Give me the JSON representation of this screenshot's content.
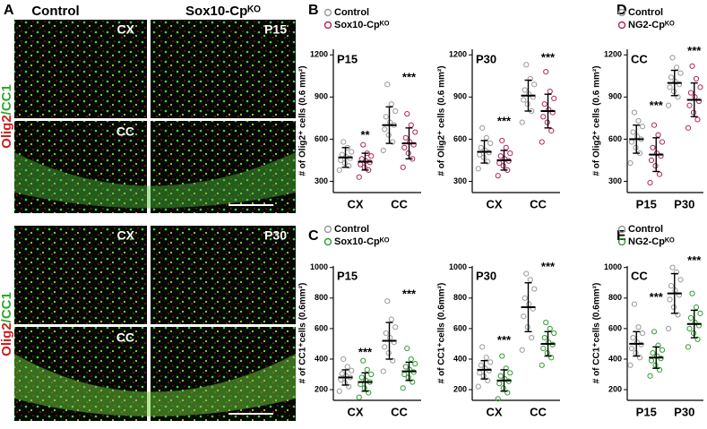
{
  "figure": {
    "letters": [
      "A",
      "B",
      "C",
      "D",
      "E"
    ],
    "imaging": {
      "col_headers": [
        "Control",
        "Sox10-Cpᴷᴼ"
      ],
      "stain_red": "Olig2",
      "stain_green": "/CC1",
      "tags_top": [
        "CX",
        "P15",
        "CC"
      ],
      "tags_bottom": [
        "CX",
        "P30",
        "CC"
      ]
    }
  },
  "chart_data": [
    {
      "type": "dotplot",
      "title": "P15",
      "ylabel": "# of Olig2⁺ cells (0.6 mm²)",
      "categories": [
        "CX",
        "CC"
      ],
      "ylim": [
        220,
        1240
      ],
      "yticks": [
        300,
        600,
        900,
        1200
      ],
      "legend": "top-left",
      "significance": [
        "**",
        "***"
      ],
      "series": [
        {
          "name": "Control",
          "color": "#999999",
          "values": [
            [
              380,
              410,
              430,
              450,
              465,
              475,
              490,
              510,
              540,
              580
            ],
            [
              520,
              580,
              630,
              670,
              700,
              720,
              760,
              800,
              850,
              990
            ]
          ],
          "means": [
            470,
            700
          ],
          "sd": [
            70,
            130
          ]
        },
        {
          "name": "Sox10-Cpᴷᴼ",
          "color": "#b0245e",
          "values": [
            [
              330,
              380,
              400,
              420,
              435,
              445,
              460,
              480,
              500,
              560
            ],
            [
              400,
              460,
              500,
              540,
              560,
              580,
              610,
              650,
              700,
              780
            ]
          ],
          "means": [
            440,
            570
          ],
          "sd": [
            60,
            110
          ]
        }
      ]
    },
    {
      "type": "dotplot",
      "title": "P30",
      "ylabel": "# of Olig2⁺ cells (0.6 mm²)",
      "categories": [
        "CX",
        "CC"
      ],
      "ylim": [
        220,
        1240
      ],
      "yticks": [
        300,
        600,
        900,
        1200
      ],
      "significance": [
        "***",
        "***"
      ],
      "series": [
        {
          "color": "#999999",
          "values": [
            [
              390,
              440,
              470,
              490,
              505,
              520,
              540,
              570,
              610,
              680
            ],
            [
              720,
              800,
              850,
              880,
              900,
              920,
              950,
              990,
              1030,
              1130
            ]
          ],
          "means": [
            510,
            910
          ],
          "sd": [
            80,
            110
          ]
        },
        {
          "color": "#b0245e",
          "values": [
            [
              340,
              380,
              410,
              430,
              445,
              460,
              480,
              500,
              540,
              590
            ],
            [
              580,
              660,
              720,
              760,
              790,
              810,
              850,
              890,
              940,
              1080
            ]
          ],
          "means": [
            450,
            800
          ],
          "sd": [
            70,
            120
          ]
        }
      ]
    },
    {
      "type": "dotplot",
      "title": "CC",
      "ylabel": "# of Olig2⁺ cells (0.6 mm²)",
      "categories": [
        "P15",
        "P30"
      ],
      "ylim": [
        220,
        1240
      ],
      "yticks": [
        300,
        600,
        900,
        1200
      ],
      "legend": "top-left",
      "significance": [
        "***",
        "***"
      ],
      "series": [
        {
          "name": "Control",
          "color": "#999999",
          "values": [
            [
              430,
              500,
              540,
              580,
              600,
              620,
              650,
              690,
              730,
              790
            ],
            [
              840,
              900,
              940,
              970,
              990,
              1010,
              1040,
              1070,
              1110,
              1180
            ]
          ],
          "means": [
            600,
            1000
          ],
          "sd": [
            100,
            90
          ]
        },
        {
          "name": "NG2-Cpᴷᴼ",
          "color": "#b0245e",
          "values": [
            [
              290,
              350,
              410,
              450,
              480,
              500,
              540,
              580,
              630,
              700
            ],
            [
              680,
              740,
              790,
              840,
              870,
              900,
              930,
              970,
              1030,
              1120
            ]
          ],
          "means": [
            490,
            880
          ],
          "sd": [
            120,
            120
          ]
        }
      ]
    },
    {
      "type": "dotplot",
      "title": "P15",
      "ylabel": "# of CC1⁺cells (0.6mm²)",
      "categories": [
        "CX",
        "CC"
      ],
      "ylim": [
        130,
        1010
      ],
      "yticks": [
        200,
        400,
        600,
        800,
        1000
      ],
      "legend": "top-left",
      "significance": [
        "***",
        "***"
      ],
      "series": [
        {
          "name": "Control",
          "color": "#999999",
          "values": [
            [
              190,
              220,
              245,
              265,
              280,
              290,
              305,
              325,
              350,
              400
            ],
            [
              320,
              390,
              440,
              480,
              510,
              540,
              570,
              610,
              660,
              780
            ]
          ],
          "means": [
            280,
            520
          ],
          "sd": [
            50,
            120
          ]
        },
        {
          "name": "Sox10-Cpᴷᴼ",
          "color": "#2e9e2e",
          "values": [
            [
              150,
              180,
              210,
              235,
              250,
              260,
              280,
              300,
              330,
              390
            ],
            [
              210,
              250,
              280,
              300,
              315,
              330,
              350,
              370,
              400,
              470
            ]
          ],
          "means": [
            250,
            320
          ],
          "sd": [
            60,
            60
          ]
        }
      ]
    },
    {
      "type": "dotplot",
      "title": "P30",
      "ylabel": "# of CC1⁺cells (0.6mm²)",
      "categories": [
        "CX",
        "CC"
      ],
      "ylim": [
        130,
        1010
      ],
      "yticks": [
        200,
        400,
        600,
        800,
        1000
      ],
      "significance": [
        "***",
        "***"
      ],
      "series": [
        {
          "color": "#999999",
          "values": [
            [
              220,
              260,
              290,
              310,
              325,
              340,
              360,
              380,
              410,
              480
            ],
            [
              460,
              540,
              610,
              680,
              730,
              760,
              800,
              860,
              920,
              960
            ]
          ],
          "means": [
            330,
            740
          ],
          "sd": [
            60,
            160
          ]
        },
        {
          "color": "#2e9e2e",
          "values": [
            [
              140,
              180,
              210,
              240,
              255,
              270,
              290,
              310,
              340,
              420
            ],
            [
              360,
              410,
              440,
              470,
              495,
              510,
              540,
              570,
              600,
              640
            ]
          ],
          "means": [
            260,
            500
          ],
          "sd": [
            70,
            80
          ]
        }
      ]
    },
    {
      "type": "dotplot",
      "title": "CC",
      "ylabel": "# of CC1⁺cells (0.6mm²)",
      "categories": [
        "P15",
        "P30"
      ],
      "ylim": [
        130,
        1010
      ],
      "yticks": [
        200,
        400,
        600,
        800,
        1000
      ],
      "legend": "top-left",
      "significance": [
        "***",
        "***"
      ],
      "series": [
        {
          "name": "Control",
          "color": "#999999",
          "values": [
            [
              360,
              410,
              440,
              470,
              495,
              510,
              540,
              570,
              610,
              760
            ],
            [
              600,
              690,
              740,
              790,
              820,
              850,
              880,
              920,
              970,
              1000
            ]
          ],
          "means": [
            500,
            830
          ],
          "sd": [
            80,
            130
          ]
        },
        {
          "name": "NG2-Cpᴷᴼ",
          "color": "#2e9e2e",
          "values": [
            [
              290,
              330,
              360,
              390,
              405,
              420,
              440,
              460,
              490,
              580
            ],
            [
              480,
              530,
              570,
              600,
              620,
              640,
              670,
              700,
              740,
              830
            ]
          ],
          "means": [
            410,
            630
          ],
          "sd": [
            70,
            90
          ]
        }
      ]
    }
  ]
}
